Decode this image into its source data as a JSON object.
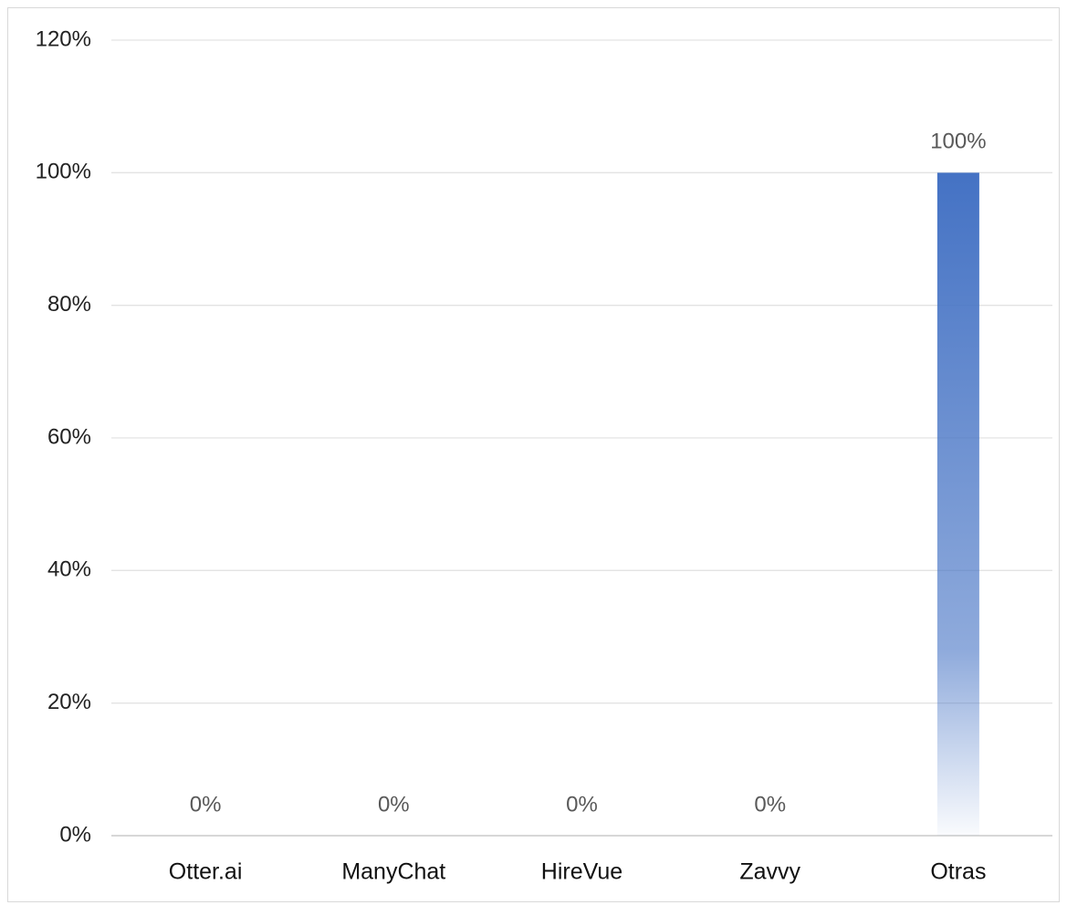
{
  "chart_data": {
    "type": "bar",
    "categories": [
      "Otter.ai",
      "ManyChat",
      "HireVue",
      "Zavvy",
      "Otras"
    ],
    "values": [
      0,
      0,
      0,
      0,
      100
    ],
    "value_labels": [
      "0%",
      "0%",
      "0%",
      "0%",
      "100%"
    ],
    "color": "#4472c4",
    "ylim": [
      0,
      120
    ],
    "yticks": [
      {
        "value": 0,
        "label": "0%"
      },
      {
        "value": 20,
        "label": "20%"
      },
      {
        "value": 40,
        "label": "40%"
      },
      {
        "value": 60,
        "label": "60%"
      },
      {
        "value": 80,
        "label": "80%"
      },
      {
        "value": 100,
        "label": "100%"
      },
      {
        "value": 120,
        "label": "120%"
      }
    ],
    "grid": true
  }
}
